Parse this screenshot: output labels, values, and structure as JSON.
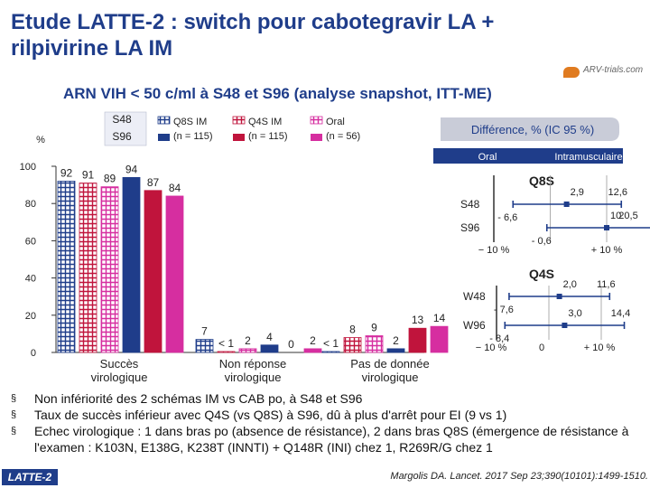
{
  "slide": {
    "title": "Etude LATTE-2 : switch pour cabotegravir LA + rilpivirine LA IM",
    "subtitle": "ARN VIH < 50 c/ml à S48 et S96 (analyse snapshot, ITT-ME)",
    "logo_text": "ARV-trials.com",
    "badge": "LATTE-2",
    "reference": "Margolis DA. Lancet. 2017 Sep 23;390(10101):1499-1510.",
    "bullets": [
      "Non infériorité des 2 schémas IM vs CAB po, à S48 et S96",
      "Taux de succès inférieur avec Q4S (vs Q8S) à S96, dû à plus d'arrêt pour EI (9 vs 1)",
      "Echec virologique : 1 dans bras po (absence de résistance), 2 dans bras Q8S (émergence de résistance à l'examen : K103N, E138G, K238T (INNTI) + Q148R (INI) chez 1, R269R/G chez 1"
    ],
    "bullet_mark": "§"
  },
  "chart_data": [
    {
      "type": "bar",
      "ylabel": "%",
      "ylim": [
        0,
        100
      ],
      "yticks": [
        0,
        20,
        40,
        60,
        80,
        100
      ],
      "legend_note": {
        "line1": "S48",
        "line2": "S96"
      },
      "legend": [
        {
          "name": "Q8S IM",
          "n": "(n = 115)",
          "color": "#1f3d8a"
        },
        {
          "name": "Q4S IM",
          "n": "(n = 115)",
          "color": "#c0143c"
        },
        {
          "name": "Oral",
          "n": "(n = 56)",
          "color": "#d62ea0"
        }
      ],
      "categories": [
        "Succès virologique",
        "Non réponse virologique",
        "Pas de donnée virologique"
      ],
      "category_lines": [
        [
          "Succès",
          "virologique"
        ],
        [
          "Non réponse",
          "virologique"
        ],
        [
          "Pas de donnée",
          "virologique"
        ]
      ],
      "bars": [
        {
          "category": 0,
          "arm": "Q8S IM",
          "visit": "S48",
          "value": 92,
          "label": "92"
        },
        {
          "category": 0,
          "arm": "Q4S IM",
          "visit": "S48",
          "value": 91,
          "label": "91"
        },
        {
          "category": 0,
          "arm": "Oral",
          "visit": "S48",
          "value": 89,
          "label": "89"
        },
        {
          "category": 0,
          "arm": "Q8S IM",
          "visit": "S96",
          "value": 94,
          "label": "94"
        },
        {
          "category": 0,
          "arm": "Q4S IM",
          "visit": "S96",
          "value": 87,
          "label": "87"
        },
        {
          "category": 0,
          "arm": "Oral",
          "visit": "S96",
          "value": 84,
          "label": "84"
        },
        {
          "category": 1,
          "arm": "Q8S IM",
          "visit": "S48",
          "value": 7,
          "label": "7"
        },
        {
          "category": 1,
          "arm": "Q4S IM",
          "visit": "S48",
          "value": 0.5,
          "label": "< 1"
        },
        {
          "category": 1,
          "arm": "Oral",
          "visit": "S48",
          "value": 2,
          "label": "2"
        },
        {
          "category": 1,
          "arm": "Q8S IM",
          "visit": "S96",
          "value": 4,
          "label": "4"
        },
        {
          "category": 1,
          "arm": "Q4S IM",
          "visit": "S96",
          "value": 0,
          "label": "0"
        },
        {
          "category": 1,
          "arm": "Oral",
          "visit": "S96",
          "value": 2,
          "label": "2"
        },
        {
          "category": 2,
          "arm": "Q8S IM",
          "visit": "S48",
          "value": 0.5,
          "label": "< 1"
        },
        {
          "category": 2,
          "arm": "Q4S IM",
          "visit": "S48",
          "value": 8,
          "label": "8"
        },
        {
          "category": 2,
          "arm": "Oral",
          "visit": "S48",
          "value": 9,
          "label": "9"
        },
        {
          "category": 2,
          "arm": "Q8S IM",
          "visit": "S96",
          "value": 2,
          "label": "2"
        },
        {
          "category": 2,
          "arm": "Q4S IM",
          "visit": "S96",
          "value": 13,
          "label": "13"
        },
        {
          "category": 2,
          "arm": "Oral",
          "visit": "S96",
          "value": 14,
          "label": "14"
        }
      ]
    },
    {
      "type": "forest",
      "title": "Différence, % (IC 95 %)",
      "direction": {
        "left": "Oral",
        "right": "Intramusculaire"
      },
      "panels": [
        {
          "name": "Q8S",
          "xlim": [
            -10,
            10
          ],
          "axis_labels": [
            "− 10 %",
            "+ 10 %"
          ],
          "rows": [
            {
              "label": "S48",
              "estimate": 2.9,
              "lower": -6.6,
              "upper": 12.6,
              "estimate_label": "2,9",
              "lower_label": "- 6,6",
              "upper_label": "12,6"
            },
            {
              "label": "S96",
              "estimate": 10,
              "lower": -0.6,
              "upper": 20.5,
              "estimate_label": "10",
              "lower_label": "- 0,6",
              "upper_label": "20,5"
            }
          ]
        },
        {
          "name": "Q4S",
          "xlim": [
            -10,
            10
          ],
          "axis_labels": [
            "− 10 %",
            "0",
            "+ 10 %"
          ],
          "rows": [
            {
              "label": "W48",
              "estimate": 2.0,
              "lower": -7.6,
              "upper": 11.6,
              "estimate_label": "2,0",
              "lower_label": "- 7,6",
              "upper_label": "11,6"
            },
            {
              "label": "W96",
              "estimate": 3.0,
              "lower": -8.4,
              "upper": 14.4,
              "estimate_label": "3,0",
              "lower_label": "- 8,4",
              "upper_label": "14,4"
            }
          ]
        }
      ]
    }
  ]
}
